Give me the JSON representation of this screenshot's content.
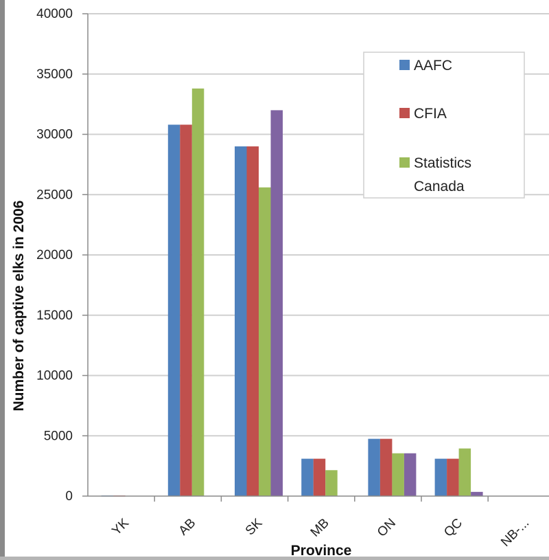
{
  "chart_data": {
    "type": "bar",
    "title": "",
    "xlabel": "Province",
    "ylabel": "Number of captive elks in 2006",
    "categories": [
      "YK",
      "AB",
      "SK",
      "MB",
      "ON",
      "QC",
      "NB-..."
    ],
    "ylim": [
      0,
      40000
    ],
    "yticks": [
      0,
      5000,
      10000,
      15000,
      20000,
      25000,
      30000,
      35000,
      40000
    ],
    "grid": true,
    "legend_position": "top-right",
    "series": [
      {
        "name": "AAFC",
        "color": "#4F81BD",
        "values": [
          50,
          30800,
          29000,
          3100,
          4750,
          3100,
          0
        ]
      },
      {
        "name": "CFIA",
        "color": "#C0504D",
        "values": [
          50,
          30800,
          29000,
          3100,
          4750,
          3100,
          0
        ]
      },
      {
        "name": "Statistics Canada",
        "color": "#9BBB59",
        "values": [
          0,
          33800,
          25600,
          2150,
          3550,
          3950,
          0
        ]
      },
      {
        "color": "#8064A2",
        "values": [
          0,
          0,
          32000,
          0,
          3550,
          350,
          0
        ]
      }
    ]
  }
}
